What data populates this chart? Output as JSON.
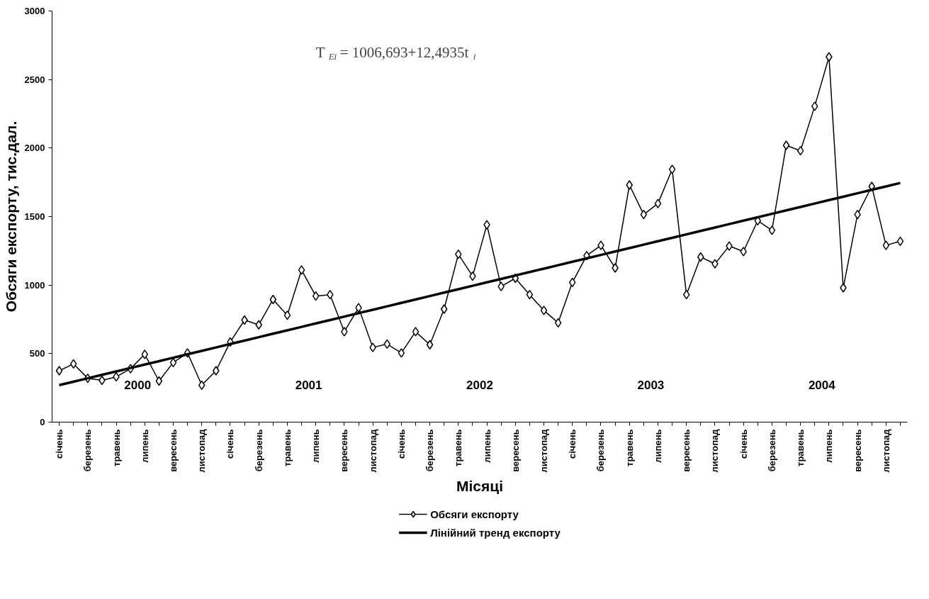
{
  "chart_data": {
    "type": "line",
    "xlabel": "Місяці",
    "ylabel": "Обсяги експорту, тис.дал.",
    "categories": [
      "січень",
      null,
      "березень",
      null,
      "травень",
      null,
      "липень",
      null,
      "вересень",
      null,
      "листопад",
      null,
      "січень",
      null,
      "березень",
      null,
      "травень",
      null,
      "липень",
      null,
      "вересень",
      null,
      "листопад",
      null,
      "січень",
      null,
      "березень",
      null,
      "травень",
      null,
      "липень",
      null,
      "вересень",
      null,
      "листопад",
      null,
      "січень",
      null,
      "березень",
      null,
      "травень",
      null,
      "липень",
      null,
      "вересень",
      null,
      "листопад",
      null,
      "січень",
      null,
      "березень",
      null,
      "травень",
      null,
      "липень",
      null,
      "вересень",
      null,
      "листопад",
      null
    ],
    "series": [
      {
        "name": "Обсяги експорту",
        "color": "#000000",
        "marker": "diamond",
        "values": [
          375,
          425,
          320,
          305,
          330,
          390,
          495,
          300,
          435,
          505,
          270,
          375,
          585,
          745,
          710,
          895,
          780,
          1110,
          920,
          930,
          660,
          835,
          545,
          570,
          505,
          660,
          565,
          825,
          1225,
          1065,
          1440,
          990,
          1050,
          930,
          815,
          725,
          1020,
          1215,
          1290,
          1125,
          1730,
          1515,
          1595,
          1845,
          930,
          1205,
          1155,
          1285,
          1245,
          1470,
          1400,
          2020,
          1980,
          2305,
          2665,
          980,
          1515,
          1720,
          1290,
          1320
        ]
      },
      {
        "name": "Лінійний тренд експорту",
        "color": "#000000",
        "marker": "none",
        "values": [
          270,
          295,
          320,
          345,
          370,
          395,
          420,
          445,
          470,
          495,
          520,
          545,
          570,
          595,
          620,
          645,
          670,
          695,
          720,
          745,
          770,
          795,
          820,
          845,
          870,
          895,
          920,
          945,
          970,
          995,
          1020,
          1045,
          1070,
          1095,
          1120,
          1145,
          1170,
          1195,
          1220,
          1245,
          1270,
          1295,
          1320,
          1345,
          1370,
          1395,
          1420,
          1445,
          1470,
          1495,
          1520,
          1545,
          1570,
          1595,
          1620,
          1645,
          1670,
          1695,
          1720,
          1745
        ]
      }
    ],
    "ylim": [
      0,
      3000
    ],
    "yticks": [
      0,
      500,
      1000,
      1500,
      2000,
      2500,
      3000
    ],
    "annotations": [
      "2000",
      "2001",
      "2002",
      "2003",
      "2004",
      "T$_{Ei}$ = 1006,693+12,4935t$_{i}$"
    ],
    "grid": false,
    "legend": "bottom"
  }
}
